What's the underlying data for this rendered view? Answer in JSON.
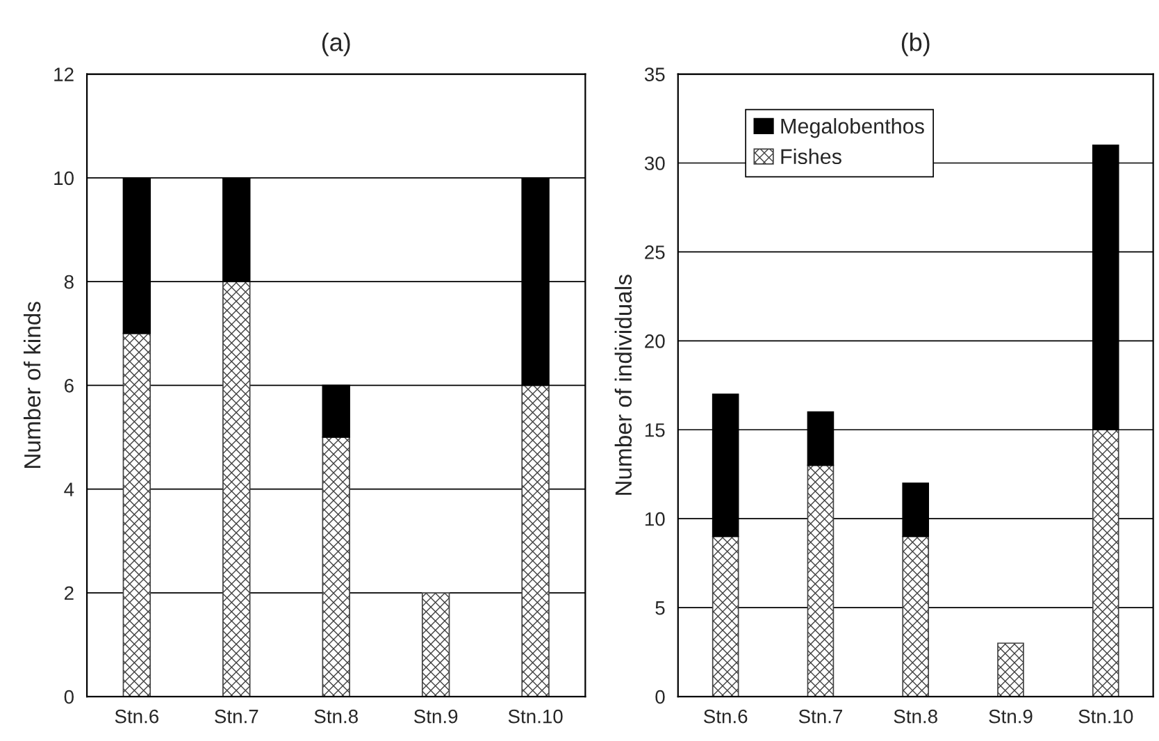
{
  "chart_data": [
    {
      "type": "bar",
      "title": "(a)",
      "ylabel": "Number of kinds",
      "categories": [
        "Stn.6",
        "Stn.7",
        "Stn.8",
        "Stn.9",
        "Stn.10"
      ],
      "stacked": true,
      "series": [
        {
          "color": "#404040",
          "values": [
            7,
            8,
            5,
            2,
            6
          ]
        },
        {
          "color": "#000000",
          "values": [
            3,
            2,
            1,
            0,
            4
          ]
        }
      ],
      "ylim": [
        0,
        12
      ],
      "yticks": [
        0,
        2,
        4,
        6,
        8,
        10,
        12
      ],
      "grid": "y",
      "legend": false
    },
    {
      "type": "bar",
      "title": "(b)",
      "ylabel": "Number of individuals",
      "categories": [
        "Stn.6",
        "Stn.7",
        "Stn.8",
        "Stn.9",
        "Stn.10"
      ],
      "stacked": true,
      "series": [
        {
          "name": "Fishes",
          "color": "#404040",
          "values": [
            9,
            13,
            9,
            3,
            15
          ]
        },
        {
          "name": "Megalobenthos",
          "color": "#000000",
          "values": [
            8,
            3,
            3,
            0,
            16
          ]
        }
      ],
      "ylim": [
        0,
        35
      ],
      "yticks": [
        0,
        5,
        10,
        15,
        20,
        25,
        30,
        35
      ],
      "grid": "y",
      "legend": "top left"
    }
  ]
}
